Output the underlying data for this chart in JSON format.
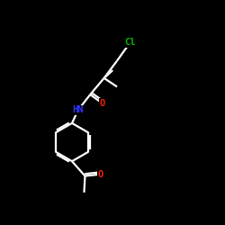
{
  "background_color": "#000000",
  "bond_color": "#ffffff",
  "atom_colors": {
    "Cl": "#00bb00",
    "O": "#ff2200",
    "N": "#3333ff",
    "C": "#ffffff"
  },
  "bond_width": 1.6,
  "figsize": [
    2.5,
    2.5
  ],
  "dpi": 100,
  "xlim": [
    0,
    10
  ],
  "ylim": [
    0,
    10
  ],
  "label_fontsize": 7.5,
  "label_fontsize_small": 6.5
}
